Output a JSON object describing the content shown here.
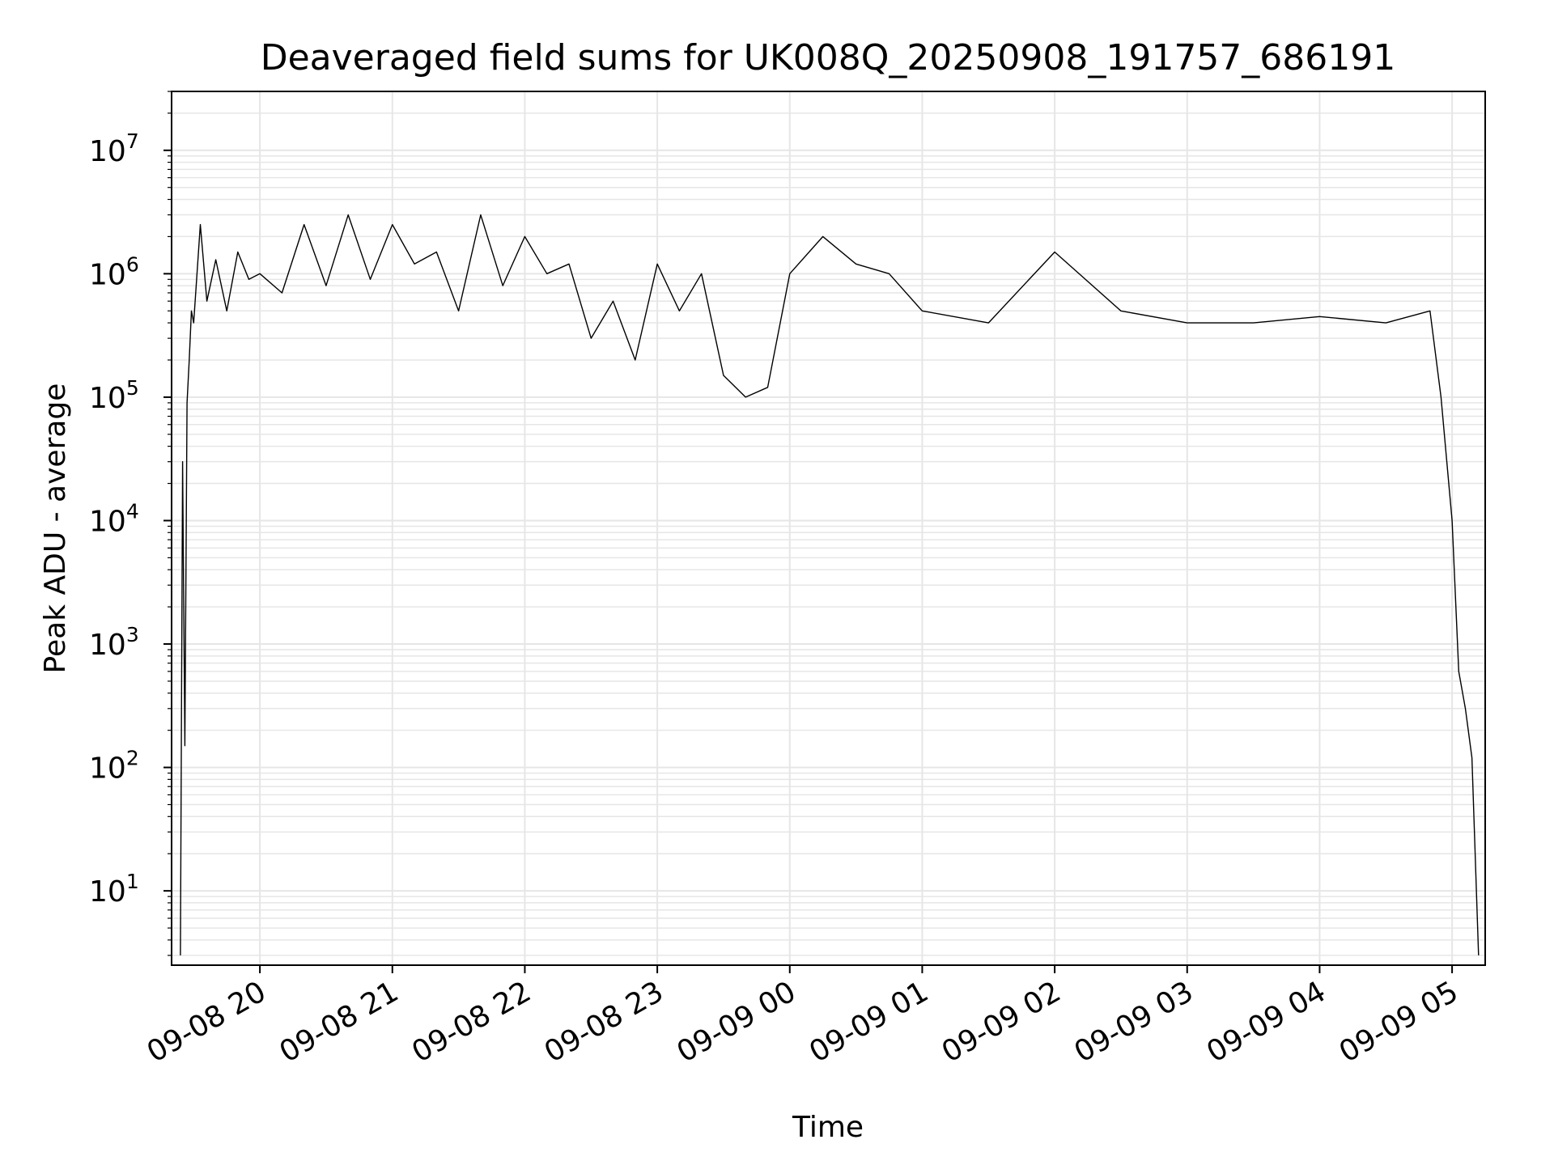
{
  "chart_data": {
    "type": "line",
    "title": "Deaveraged field sums for UK008Q_20250908_191757_686191",
    "xlabel": "Time",
    "ylabel": "Peak ADU - average",
    "yscale": "log",
    "grid": true,
    "line_color": "#000000",
    "grid_color": "#e6e6e6",
    "xlim": [
      "2025-09-08 19:20",
      "2025-09-09 05:15"
    ],
    "ylim": [
      2.5,
      30000000
    ],
    "x_ticks": [
      {
        "t": "2025-09-08 20:00",
        "label": "09-08 20"
      },
      {
        "t": "2025-09-08 21:00",
        "label": "09-08 21"
      },
      {
        "t": "2025-09-08 22:00",
        "label": "09-08 22"
      },
      {
        "t": "2025-09-08 23:00",
        "label": "09-08 23"
      },
      {
        "t": "2025-09-09 00:00",
        "label": "09-09 00"
      },
      {
        "t": "2025-09-09 01:00",
        "label": "09-09 01"
      },
      {
        "t": "2025-09-09 02:00",
        "label": "09-09 02"
      },
      {
        "t": "2025-09-09 03:00",
        "label": "09-09 03"
      },
      {
        "t": "2025-09-09 04:00",
        "label": "09-09 04"
      },
      {
        "t": "2025-09-09 05:00",
        "label": "09-09 05"
      }
    ],
    "y_ticks": [
      {
        "value": 10,
        "base": "10",
        "exp": "1"
      },
      {
        "value": 100,
        "base": "10",
        "exp": "2"
      },
      {
        "value": 1000,
        "base": "10",
        "exp": "3"
      },
      {
        "value": 10000,
        "base": "10",
        "exp": "4"
      },
      {
        "value": 100000,
        "base": "10",
        "exp": "5"
      },
      {
        "value": 1000000,
        "base": "10",
        "exp": "6"
      },
      {
        "value": 10000000,
        "base": "10",
        "exp": "7"
      }
    ],
    "series": [
      {
        "x": [
          "2025-09-08 19:24",
          "2025-09-08 19:25",
          "2025-09-08 19:26",
          "2025-09-08 19:27",
          "2025-09-08 19:28",
          "2025-09-08 19:29",
          "2025-09-08 19:30",
          "2025-09-08 19:33",
          "2025-09-08 19:36",
          "2025-09-08 19:40",
          "2025-09-08 19:45",
          "2025-09-08 19:50",
          "2025-09-08 19:55",
          "2025-09-08 20:00",
          "2025-09-08 20:10",
          "2025-09-08 20:20",
          "2025-09-08 20:30",
          "2025-09-08 20:40",
          "2025-09-08 20:50",
          "2025-09-08 21:00",
          "2025-09-08 21:10",
          "2025-09-08 21:20",
          "2025-09-08 21:30",
          "2025-09-08 21:40",
          "2025-09-08 21:50",
          "2025-09-08 22:00",
          "2025-09-08 22:10",
          "2025-09-08 22:20",
          "2025-09-08 22:30",
          "2025-09-08 22:40",
          "2025-09-08 22:50",
          "2025-09-08 23:00",
          "2025-09-08 23:10",
          "2025-09-08 23:20",
          "2025-09-08 23:30",
          "2025-09-08 23:40",
          "2025-09-08 23:50",
          "2025-09-09 00:00",
          "2025-09-09 00:15",
          "2025-09-09 00:30",
          "2025-09-09 00:45",
          "2025-09-09 01:00",
          "2025-09-09 01:30",
          "2025-09-09 02:00",
          "2025-09-09 02:30",
          "2025-09-09 03:00",
          "2025-09-09 03:30",
          "2025-09-09 04:00",
          "2025-09-09 04:30",
          "2025-09-09 04:50",
          "2025-09-09 04:55",
          "2025-09-09 05:00",
          "2025-09-09 05:03",
          "2025-09-09 05:06",
          "2025-09-09 05:09",
          "2025-09-09 05:12"
        ],
        "y": [
          3,
          30000,
          150,
          90000,
          200000,
          500000,
          400000,
          2500000,
          600000,
          1300000,
          500000,
          1500000,
          900000,
          1000000,
          700000,
          2500000,
          800000,
          3000000,
          900000,
          2500000,
          1200000,
          1500000,
          500000,
          3000000,
          800000,
          2000000,
          1000000,
          1200000,
          300000,
          600000,
          200000,
          1200000,
          500000,
          1000000,
          150000,
          100000,
          120000,
          1000000,
          2000000,
          1200000,
          1000000,
          500000,
          400000,
          1500000,
          500000,
          400000,
          400000,
          450000,
          400000,
          500000,
          100000,
          10000,
          600,
          300,
          120,
          3
        ]
      }
    ]
  }
}
